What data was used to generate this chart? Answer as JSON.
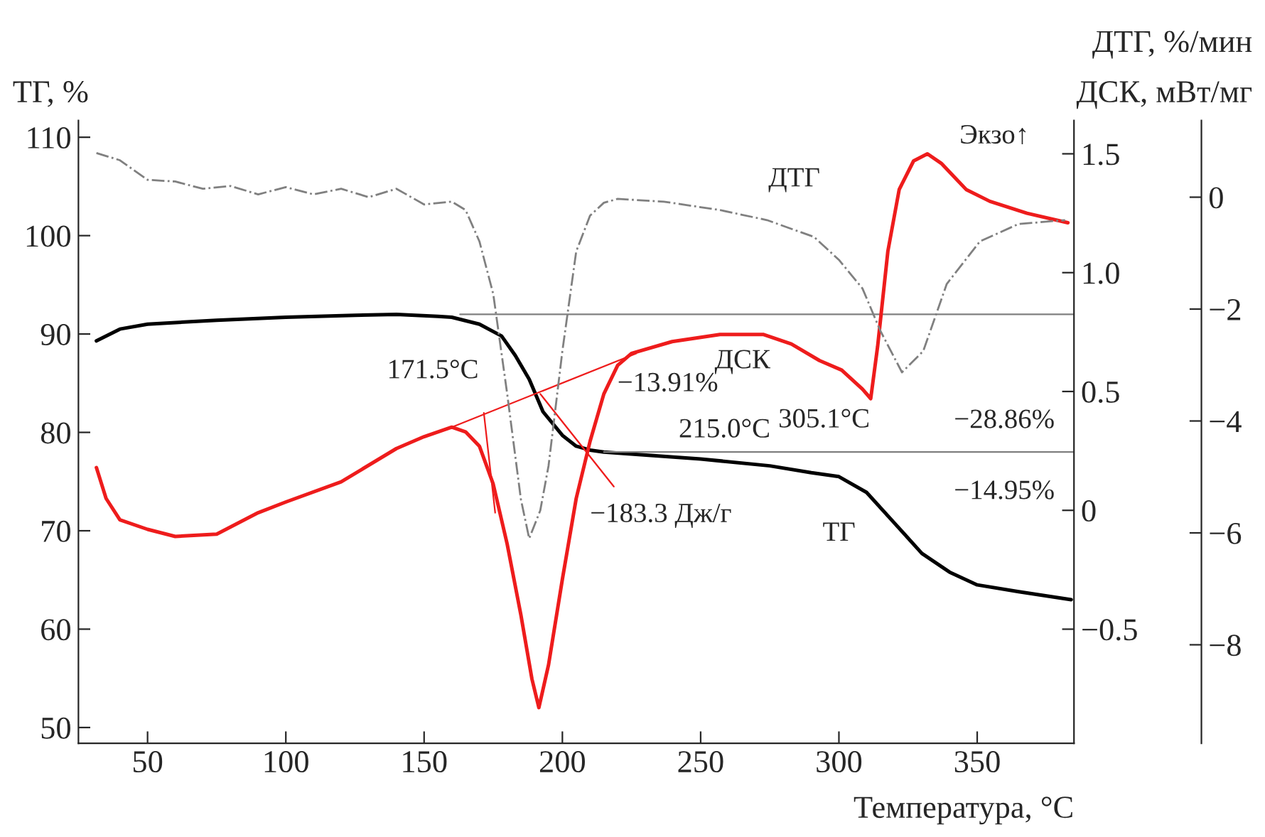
{
  "chart_data": {
    "type": "line",
    "xlabel": "Температура, °C",
    "ylabel": "ТГ, %",
    "y2label": "ДСК, мВт/мг",
    "y3label": "ДТГ, %/мин",
    "xlim": [
      25,
      385
    ],
    "xticks": [
      50,
      100,
      150,
      200,
      250,
      300,
      350
    ],
    "ylim": [
      48.4,
      111.7
    ],
    "yticks": [
      50,
      60,
      70,
      80,
      90,
      100,
      110
    ],
    "y2lim": [
      -0.98,
      1.64
    ],
    "y2ticks": [
      -0.5,
      0,
      0.5,
      {
        "value": 1.0,
        "label": "1.0"
      },
      1.5
    ],
    "y3lim": [
      -9.76,
      1.37
    ],
    "y3ticks": [
      0,
      -2,
      -4,
      -6,
      -8
    ],
    "grid": false,
    "legend": false,
    "marker": "none",
    "series": [
      {
        "color": "#000000",
        "line_style": "solid",
        "axis": "y",
        "x": [
          31.5,
          40,
          50,
          75,
          100,
          125,
          140,
          155,
          160,
          170,
          178,
          183,
          188,
          193,
          200,
          205,
          210,
          215,
          250,
          275,
          290,
          300,
          310,
          320,
          330,
          340,
          350,
          365,
          384
        ],
        "values": [
          89.3,
          90.5,
          91.0,
          91.4,
          91.7,
          91.9,
          92.0,
          91.8,
          91.7,
          91.0,
          89.8,
          87.8,
          85.4,
          82.1,
          79.7,
          78.6,
          78.2,
          78.0,
          77.3,
          76.6,
          75.9,
          75.5,
          73.9,
          70.8,
          67.7,
          65.8,
          64.5,
          63.8,
          63.0
        ]
      },
      {
        "color": "#ee1c1c",
        "line_style": "solid",
        "axis": "y2",
        "x": [
          31.5,
          35,
          40,
          50,
          60,
          75,
          90,
          100,
          120,
          140,
          150,
          160,
          165,
          170,
          175,
          180,
          185,
          189,
          191.5,
          195,
          200,
          205,
          210,
          215,
          220,
          225,
          239.7,
          257,
          272.6,
          282.8,
          293,
          301,
          308.5,
          311.5,
          314,
          317.7,
          321.8,
          327,
          332,
          337,
          346,
          354.6,
          368,
          382.8
        ],
        "values": [
          0.18,
          0.05,
          -0.04,
          -0.08,
          -0.11,
          -0.1,
          -0.01,
          0.035,
          0.12,
          0.26,
          0.31,
          0.35,
          0.33,
          0.27,
          0.11,
          -0.14,
          -0.44,
          -0.71,
          -0.83,
          -0.65,
          -0.29,
          0.05,
          0.29,
          0.49,
          0.61,
          0.66,
          0.71,
          0.74,
          0.74,
          0.7,
          0.63,
          0.59,
          0.51,
          0.47,
          0.69,
          1.09,
          1.35,
          1.47,
          1.5,
          1.46,
          1.35,
          1.3,
          1.25,
          1.21
        ]
      },
      {
        "color": "#808080",
        "line_style": "dashed",
        "axis": "y3",
        "x": [
          31.5,
          40,
          50,
          60,
          70,
          80,
          90,
          100,
          110,
          120,
          130,
          140,
          150,
          160,
          165,
          170,
          175,
          180,
          185,
          188,
          192,
          195,
          200,
          205,
          210,
          215,
          220,
          236.7,
          257,
          274,
          291,
          300,
          308.5,
          315,
          322.8,
          330.5,
          339,
          351,
          364.9,
          381.8
        ],
        "values": [
          0.79,
          0.66,
          0.31,
          0.28,
          0.15,
          0.2,
          0.05,
          0.18,
          0.05,
          0.15,
          0.0,
          0.15,
          -0.13,
          -0.08,
          -0.23,
          -0.79,
          -1.73,
          -3.5,
          -5.4,
          -6.1,
          -5.6,
          -4.8,
          -2.75,
          -0.97,
          -0.33,
          -0.1,
          -0.03,
          -0.08,
          -0.23,
          -0.41,
          -0.71,
          -1.12,
          -1.63,
          -2.39,
          -3.13,
          -2.75,
          -1.55,
          -0.79,
          -0.48,
          -0.41
        ]
      },
      {
        "color": "#808080",
        "line_style": "solid",
        "axis": "y",
        "x": [
          163,
          385
        ],
        "values": [
          92.0,
          92.0
        ]
      },
      {
        "color": "#808080",
        "line_style": "solid",
        "axis": "y",
        "x": [
          215,
          385
        ],
        "values": [
          78.0,
          78.0
        ]
      },
      {
        "color": "#ee1c1c",
        "line_style": "solid",
        "axis": "y2",
        "x": [
          160,
          226.7
        ],
        "values": [
          0.35,
          0.66
        ]
      },
      {
        "color": "#ee1c1c",
        "line_style": "solid",
        "axis": "y2",
        "x": [
          171.6,
          175.7
        ],
        "values": [
          0.41,
          -0.01
        ]
      },
      {
        "color": "#ee1c1c",
        "line_style": "solid",
        "axis": "y2",
        "x": [
          192,
          218.6
        ],
        "values": [
          0.49,
          0.1
        ]
      }
    ],
    "annotations": [
      "ДТГ",
      "ДСК",
      "ТГ",
      "171.5°C",
      "−13.91%",
      "215.0°C",
      "−183.3 Дж/г",
      "305.1°C",
      "−28.86%",
      "−14.95%",
      "Экзо↑"
    ]
  }
}
